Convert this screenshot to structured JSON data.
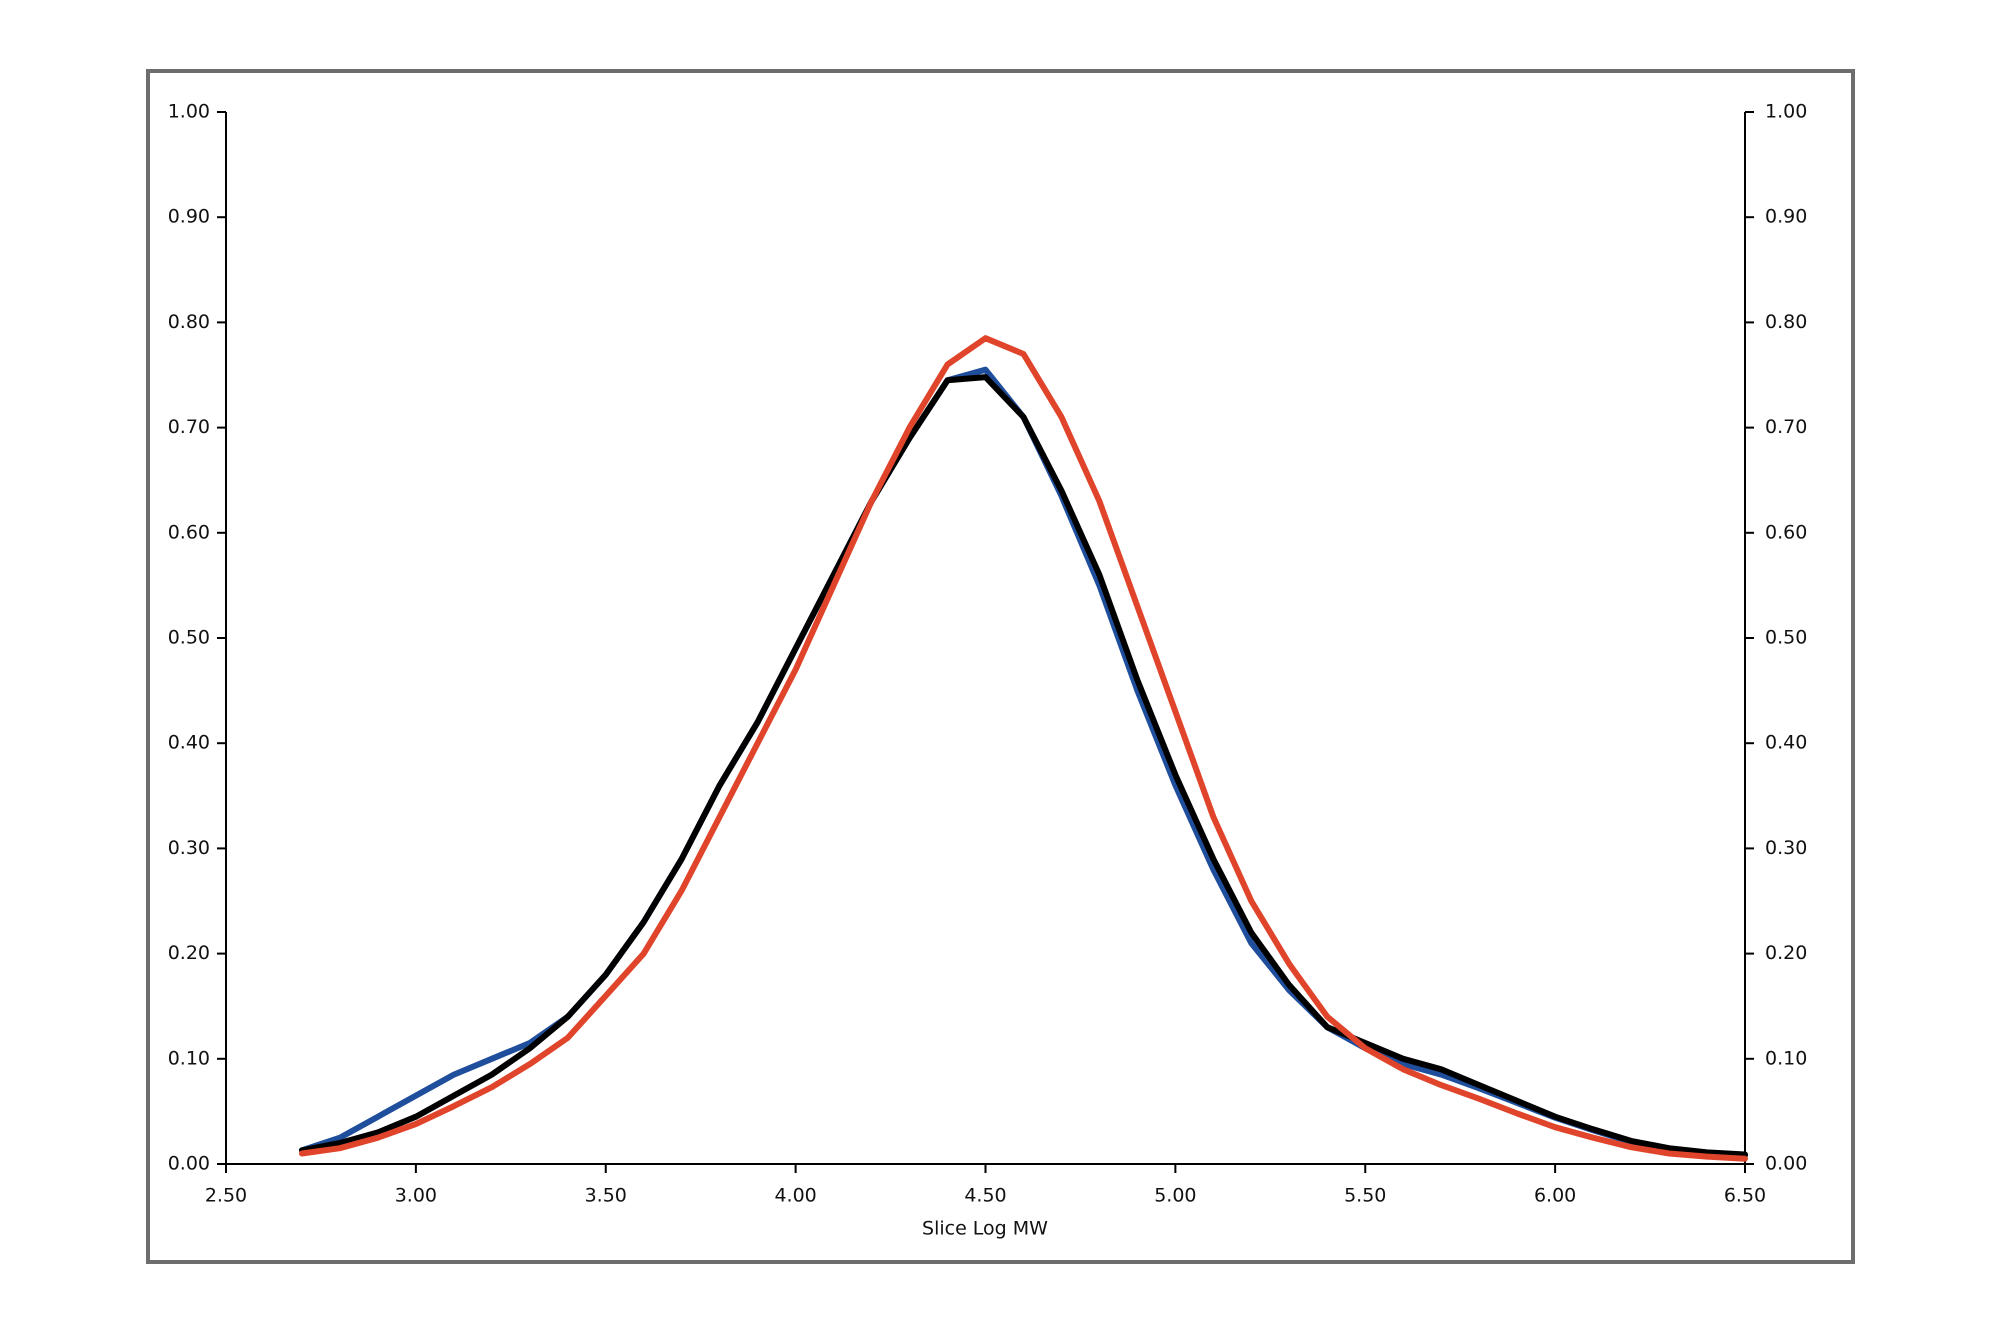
{
  "chart_data": {
    "type": "line",
    "xlabel": "Slice Log MW",
    "x": [
      2.7,
      2.8,
      2.9,
      3.0,
      3.1,
      3.2,
      3.3,
      3.4,
      3.5,
      3.6,
      3.7,
      3.8,
      3.9,
      4.0,
      4.1,
      4.2,
      4.3,
      4.4,
      4.5,
      4.6,
      4.7,
      4.8,
      4.9,
      5.0,
      5.1,
      5.2,
      5.3,
      5.4,
      5.5,
      5.6,
      5.7,
      5.8,
      5.9,
      6.0,
      6.1,
      6.2,
      6.3,
      6.4,
      6.5
    ],
    "series": [
      {
        "color": "#1f4e9c",
        "values": [
          0.013,
          0.025,
          0.045,
          0.065,
          0.085,
          0.1,
          0.115,
          0.14,
          0.18,
          0.23,
          0.29,
          0.36,
          0.42,
          0.49,
          0.56,
          0.63,
          0.69,
          0.745,
          0.755,
          0.71,
          0.635,
          0.55,
          0.45,
          0.36,
          0.28,
          0.21,
          0.165,
          0.13,
          0.11,
          0.095,
          0.085,
          0.072,
          0.058,
          0.044,
          0.032,
          0.021,
          0.014,
          0.01,
          0.008
        ]
      },
      {
        "color": "#000000",
        "values": [
          0.013,
          0.02,
          0.03,
          0.045,
          0.065,
          0.085,
          0.11,
          0.14,
          0.18,
          0.23,
          0.29,
          0.36,
          0.42,
          0.49,
          0.56,
          0.63,
          0.69,
          0.745,
          0.748,
          0.71,
          0.64,
          0.56,
          0.46,
          0.37,
          0.29,
          0.22,
          0.17,
          0.13,
          0.115,
          0.1,
          0.09,
          0.075,
          0.06,
          0.045,
          0.033,
          0.022,
          0.015,
          0.011,
          0.009
        ]
      },
      {
        "color": "#e0452c",
        "values": [
          0.01,
          0.015,
          0.025,
          0.038,
          0.055,
          0.073,
          0.095,
          0.12,
          0.16,
          0.2,
          0.26,
          0.33,
          0.4,
          0.47,
          0.55,
          0.63,
          0.7,
          0.76,
          0.785,
          0.77,
          0.71,
          0.63,
          0.53,
          0.43,
          0.33,
          0.25,
          0.19,
          0.14,
          0.11,
          0.09,
          0.075,
          0.062,
          0.048,
          0.035,
          0.025,
          0.016,
          0.01,
          0.007,
          0.005
        ]
      }
    ],
    "xlim": [
      2.5,
      6.5
    ],
    "xticks": [
      {
        "value": 2.5,
        "label": "2.50"
      },
      {
        "value": 3,
        "label": "3.00"
      },
      {
        "value": 3.5,
        "label": "3.50"
      },
      {
        "value": 4,
        "label": "4.00"
      },
      {
        "value": 4.5,
        "label": "4.50"
      },
      {
        "value": 5,
        "label": "5.00"
      },
      {
        "value": 5.5,
        "label": "5.50"
      },
      {
        "value": 6,
        "label": "6.00"
      },
      {
        "value": 6.5,
        "label": "6.50"
      }
    ],
    "ylim": [
      0,
      1
    ],
    "yticks": [
      {
        "value": 0,
        "label": "0.00"
      },
      {
        "value": 0.1,
        "label": "0.10"
      },
      {
        "value": 0.2,
        "label": "0.20"
      },
      {
        "value": 0.3,
        "label": "0.30"
      },
      {
        "value": 0.4,
        "label": "0.40"
      },
      {
        "value": 0.5,
        "label": "0.50"
      },
      {
        "value": 0.6,
        "label": "0.60"
      },
      {
        "value": 0.7,
        "label": "0.70"
      },
      {
        "value": 0.8,
        "label": "0.80"
      },
      {
        "value": 0.9,
        "label": "0.90"
      },
      {
        "value": 1,
        "label": "1.00"
      }
    ],
    "y2lim": [
      0,
      1
    ],
    "y2ticks": [
      {
        "value": 0,
        "label": "0.00"
      },
      {
        "value": 0.1,
        "label": "0.10"
      },
      {
        "value": 0.2,
        "label": "0.20"
      },
      {
        "value": 0.3,
        "label": "0.30"
      },
      {
        "value": 0.4,
        "label": "0.40"
      },
      {
        "value": 0.5,
        "label": "0.50"
      },
      {
        "value": 0.6,
        "label": "0.60"
      },
      {
        "value": 0.7,
        "label": "0.70"
      },
      {
        "value": 0.8,
        "label": "0.80"
      },
      {
        "value": 0.9,
        "label": "0.90"
      },
      {
        "value": 1,
        "label": "1.00"
      }
    ],
    "grid": false
  }
}
